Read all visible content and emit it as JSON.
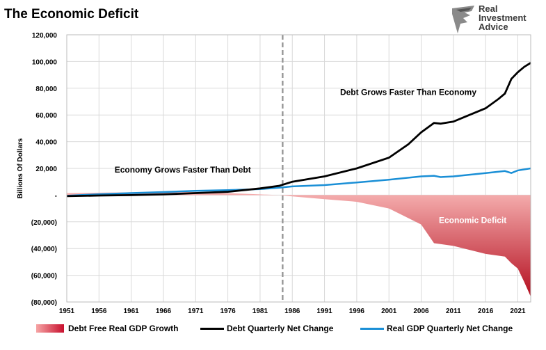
{
  "header": {
    "title": "The Economic Deficit"
  },
  "logo": {
    "lines": [
      "Real",
      "Investment",
      "Advice"
    ]
  },
  "colors": {
    "debt": "#000000",
    "gdp": "#1a8fd6",
    "deficit_light": "#f6b0b0",
    "deficit_dark": "#b40f20",
    "divider": "#999999"
  },
  "chart_data": {
    "type": "line",
    "title": "The Economic Deficit",
    "ylabel": "Billions Of Dollars",
    "xlabel": "",
    "xlim": [
      1951,
      2023
    ],
    "ylim": [
      -80000,
      120000
    ],
    "x_ticks": [
      "1951",
      "1956",
      "1961",
      "1966",
      "1971",
      "1976",
      "1981",
      "1986",
      "1991",
      "1996",
      "2001",
      "2006",
      "2011",
      "2016",
      "2021"
    ],
    "y_ticks": [
      "120,000",
      "100,000",
      "80,000",
      "60,000",
      "40,000",
      "20,000",
      "-",
      "(20,000)",
      "(40,000)",
      "(60,000)",
      "(80,000)"
    ],
    "y_tick_values": [
      120000,
      100000,
      80000,
      60000,
      40000,
      20000,
      0,
      -20000,
      -40000,
      -60000,
      -80000
    ],
    "grid": true,
    "legend_position": "bottom",
    "divider_year": 1984.5,
    "annotations": [
      {
        "text": "Economy Grows Faster Than Debt",
        "x": 1969,
        "y": 17000,
        "color": "#000000"
      },
      {
        "text": "Debt Grows Faster Than Economy",
        "x": 2004,
        "y": 75000,
        "color": "#000000"
      },
      {
        "text": "Economic Deficit",
        "x": 2014,
        "y": -21000,
        "color": "#ffffff"
      }
    ],
    "series": [
      {
        "name": "Debt Free Real GDP Growth",
        "style": "area",
        "x": [
          1951,
          1956,
          1961,
          1966,
          1971,
          1976,
          1981,
          1984,
          1986,
          1991,
          1996,
          2001,
          2006,
          2008,
          2011,
          2016,
          2019,
          2020,
          2021,
          2022,
          2023
        ],
        "values": [
          1500,
          1800,
          2100,
          2300,
          2300,
          1500,
          500,
          0,
          -1000,
          -3000,
          -5000,
          -10000,
          -22000,
          -36000,
          -38000,
          -44000,
          -46000,
          -51000,
          -55000,
          -65000,
          -76000
        ]
      },
      {
        "name": "Debt Quarterly Net Change",
        "style": "line",
        "x": [
          1951,
          1956,
          1961,
          1966,
          1971,
          1976,
          1981,
          1984,
          1986,
          1991,
          1996,
          2001,
          2004,
          2006,
          2008,
          2009,
          2011,
          2013,
          2016,
          2018,
          2019,
          2020,
          2021,
          2022,
          2023
        ],
        "values": [
          -800,
          -300,
          0,
          500,
          1500,
          2500,
          5000,
          7000,
          10000,
          14000,
          20000,
          28000,
          38000,
          47000,
          54000,
          53500,
          55000,
          59000,
          65000,
          72000,
          76000,
          87000,
          92000,
          96000,
          99000
        ]
      },
      {
        "name": "Real GDP Quarterly Net Change",
        "style": "line",
        "x": [
          1951,
          1956,
          1961,
          1966,
          1971,
          1976,
          1981,
          1984,
          1986,
          1991,
          1996,
          2001,
          2006,
          2008,
          2009,
          2011,
          2016,
          2019,
          2020,
          2021,
          2023
        ],
        "values": [
          -500,
          700,
          1500,
          2300,
          3200,
          3700,
          4500,
          5500,
          6500,
          7500,
          9500,
          11500,
          14000,
          14500,
          13500,
          14000,
          16500,
          18000,
          16500,
          18500,
          20000
        ]
      }
    ]
  },
  "legend": {
    "items": [
      "Debt Free Real GDP Growth",
      "Debt Quarterly Net Change",
      "Real GDP Quarterly Net Change"
    ]
  }
}
